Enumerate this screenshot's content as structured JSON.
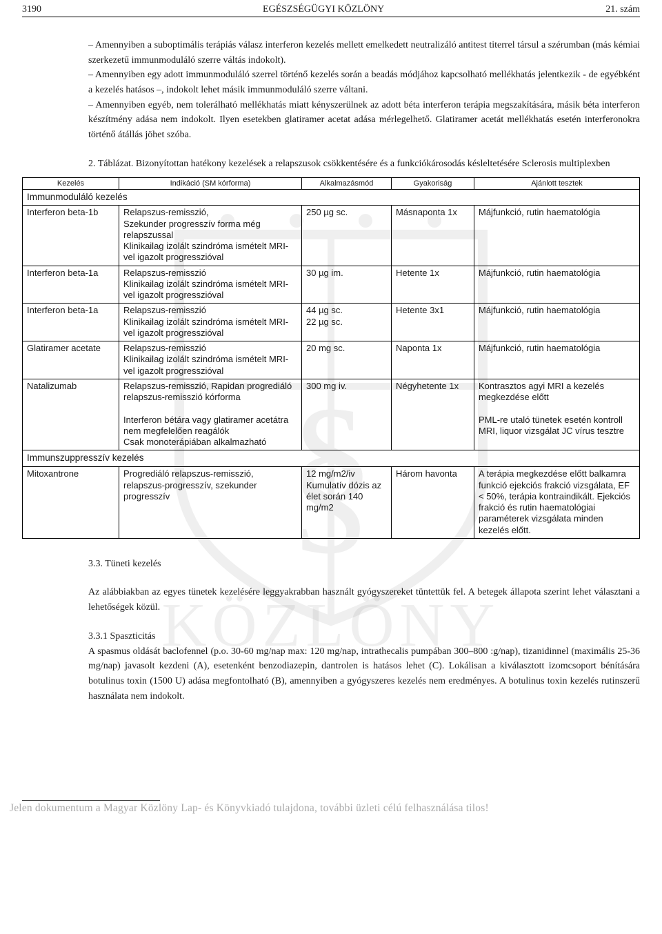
{
  "header": {
    "page_number": "3190",
    "title": "EGÉSZSÉGÜGYI KÖZLÖNY",
    "issue": "21. szám"
  },
  "intro_bullets": [
    "– Amennyiben a suboptimális terápiás válasz interferon kezelés mellett emelkedett neutralizáló antitest titerrel társul a szérumban (más kémiai szerkezetű immunmoduláló szerre váltás indokolt).",
    "– Amennyiben egy adott immunmoduláló szerrel történő kezelés során a beadás módjához kapcsolható mellékhatás jelentkezik - de egyébként a kezelés hatásos –, indokolt lehet másik immunmoduláló szerre váltani.",
    "– Amennyiben egyéb, nem tolerálható mellékhatás miatt kényszerülnek az adott béta interferon terápia megszakítására, másik béta interferon készítmény adása nem indokolt. Ilyen esetekben glatiramer acetat adása mérlegelhető. Glatiramer acetát mellékhatás esetén interferonokra történő átállás jöhet szóba."
  ],
  "table_caption": "2. Táblázat. Bizonyítottan hatékony kezelések a relapszusok csökkentésére és a funkciókárosodás késleltetésére Sclerosis multiplexben",
  "table_headers": [
    "Kezelés",
    "Indikáció (SM kórforma)",
    "Alkalmazásmód",
    "Gyakoriság",
    "Ajánlott tesztek"
  ],
  "section1": "Immunmoduláló kezelés",
  "rows": [
    {
      "t": "Interferon beta-1b",
      "ind": "Relapszus-remisszió,\nSzekunder progresszív forma még relapszussal\nKlinikailag izolált szindróma ismételt MRI-vel igazolt progresszióval",
      "dose": "250 µg sc.",
      "freq": "Másnaponta 1x",
      "tests": "Májfunkció, rutin haematológia"
    },
    {
      "t": "Interferon beta-1a",
      "ind": "Relapszus-remisszió\nKlinikailag izolált szindróma ismételt MRI-vel igazolt progresszióval",
      "dose": "30 µg im.",
      "freq": "Hetente 1x",
      "tests": "Májfunkció, rutin haematológia"
    },
    {
      "t": "Interferon beta-1a",
      "ind": "Relapszus-remisszió\nKlinikailag izolált szindróma ismételt MRI-vel igazolt progresszióval",
      "dose": "44 µg sc.\n22 µg sc.",
      "freq": "Hetente 3x1",
      "tests": "Májfunkció, rutin haematológia"
    },
    {
      "t": "Glatiramer acetate",
      "ind": "Relapszus-remisszió\nKlinikailag izolált szindróma ismételt MRI-vel igazolt progresszióval",
      "dose": "20 mg sc.",
      "freq": "Naponta 1x",
      "tests": "Májfunkció, rutin haematológia"
    },
    {
      "t": "Natalizumab",
      "ind": "Relapszus-remisszió, Rapidan progrediáló relapszus-remisszió kórforma\n\nInterferon bétára vagy glatiramer acetátra nem megfelelően reagálók\nCsak monoterápiában alkalmazható",
      "dose": "300 mg iv.",
      "freq": "Négyhetente 1x",
      "tests": "Kontrasztos agyi MRI a kezelés megkezdése előtt\n\nPML-re utaló tünetek esetén kontroll MRI, liquor vizsgálat JC vírus tesztre"
    }
  ],
  "section2": "Immunszuppresszív kezelés",
  "rows2": [
    {
      "t": "Mitoxantrone",
      "ind": "Progrediáló relapszus-remisszió, relapszus-progresszív, szekunder progresszív",
      "dose": "12 mg/m2/iv\nKumulatív dózis az élet során 140 mg/m2",
      "freq": "Három havonta",
      "tests": "A terápia megkezdése előtt balkamra funkció ejekciós frakció vizsgálata, EF < 50%, terápia kontraindikált. Ejekciós frakció és rutin haematológiai paraméterek vizsgálata minden kezelés előtt."
    }
  ],
  "section_33_title": "3.3. Tüneti kezelés",
  "section_33_body": "Az alábbiakban az egyes tünetek kezelésére leggyakrabban használt gyógyszereket tüntettük fel. A betegek állapota szerint lehet választani a lehetőségek közül.",
  "section_331_title": "3.3.1 Spaszticitás",
  "section_331_body": "A spasmus oldását baclofennel (p.o. 30-60 mg/nap max: 120 mg/nap, intrathecalis pumpában 300–800 :g/nap), tizanidinnel (maximális 25-36 mg/nap) javasolt kezdeni (A), esetenként benzodiazepin, dantrolen is hatásos lehet (C). Lokálisan a kiválasztott izomcsoport bénítására botulinus toxin (1500 U) adása megfontolható (B), amennyiben a gyógyszeres kezelés nem eredményes. A botulinus toxin kezelés rutinszerű használata nem indokolt.",
  "footer_notice": "Jelen dokumentum a Magyar Közlöny Lap- és Könyvkiadó tulajdona, további üzleti célú felhasználása tilos!",
  "watermark_text": "KÖZLÖNY"
}
